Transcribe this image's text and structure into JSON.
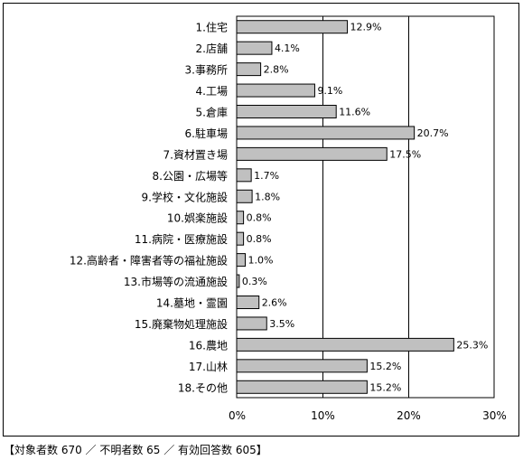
{
  "chart_data": {
    "type": "bar",
    "orientation": "horizontal",
    "categories": [
      "1.住宅",
      "2.店舗",
      "3.事務所",
      "4.工場",
      "5.倉庫",
      "6.駐車場",
      "7.資材置き場",
      "8.公園・広場等",
      "9.学校・文化施設",
      "10.娯楽施設",
      "11.病院・医療施設",
      "12.高齢者・障害者等の福祉施設",
      "13.市場等の流通施設",
      "14.墓地・霊園",
      "15.廃棄物処理施設",
      "16.農地",
      "17.山林",
      "18.その他"
    ],
    "values": [
      12.9,
      4.1,
      2.8,
      9.1,
      11.6,
      20.7,
      17.5,
      1.7,
      1.8,
      0.8,
      0.8,
      1.0,
      0.3,
      2.6,
      3.5,
      25.3,
      15.2,
      15.2
    ],
    "value_labels": [
      "12.9%",
      "4.1%",
      "2.8%",
      "9.1%",
      "11.6%",
      "20.7%",
      "17.5%",
      "1.7%",
      "1.8%",
      "0.8%",
      "0.8%",
      "1.0%",
      "0.3%",
      "2.6%",
      "3.5%",
      "25.3%",
      "15.2%",
      "15.2%"
    ],
    "xlim": [
      0,
      30
    ],
    "x_ticks": [
      "0%",
      "10%",
      "20%",
      "30%"
    ],
    "grid": "vertical",
    "bar_color": "#c0c0c0"
  },
  "footnote": "【対象者数 670 ／ 不明者数 65 ／ 有効回答数 605】"
}
